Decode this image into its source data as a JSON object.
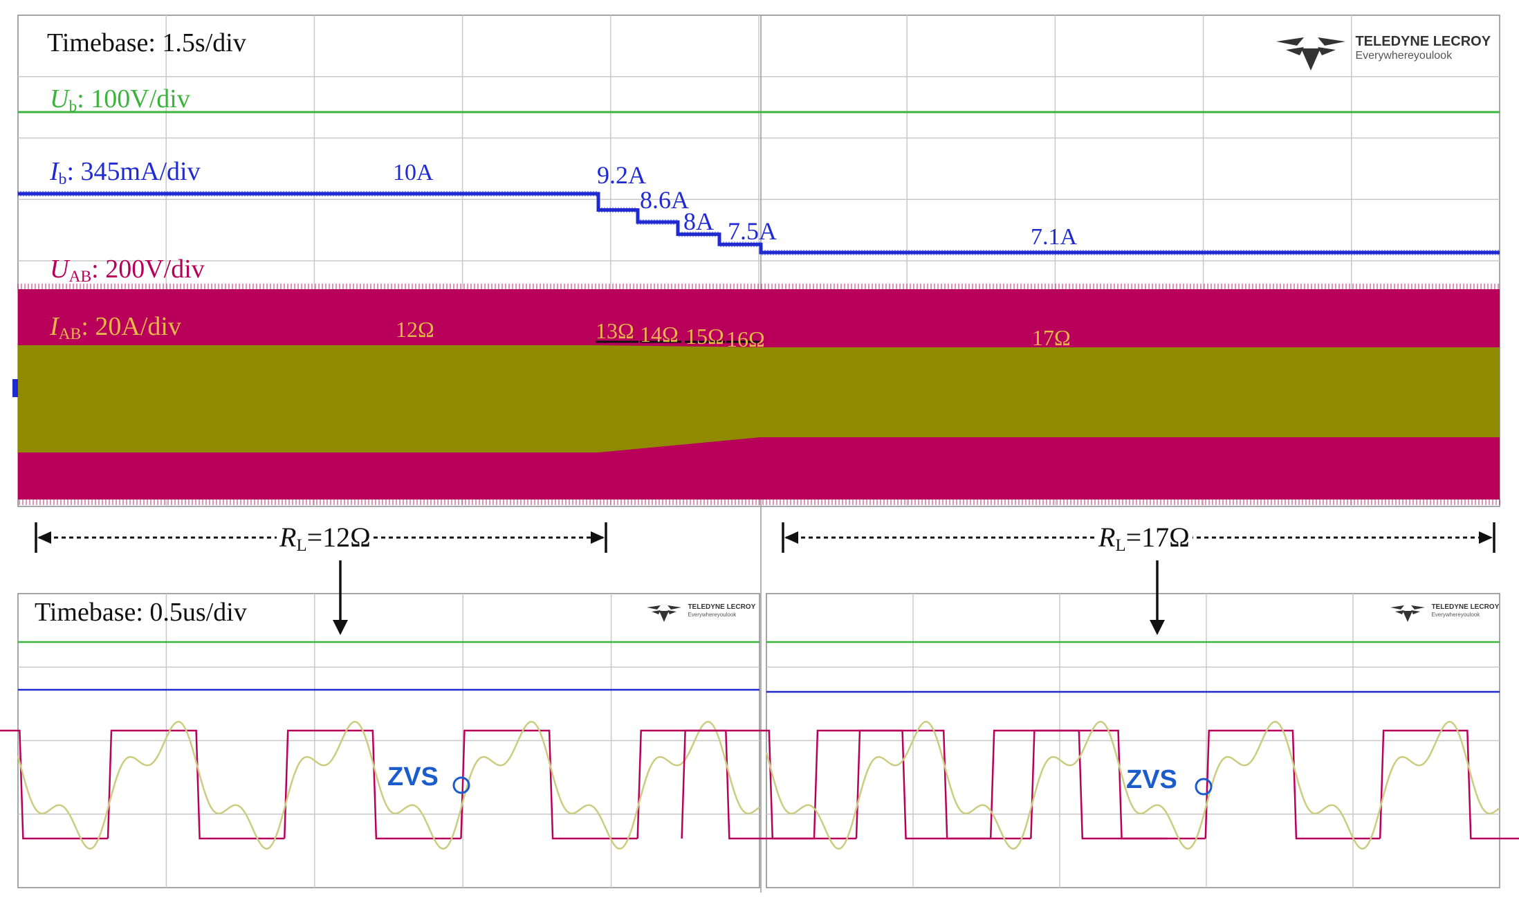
{
  "colors": {
    "ub": "#3cb33c",
    "ib": "#1f2ad0",
    "uab": "#b8005a",
    "iab": "#8f8a00",
    "iab_text": "#e6b84a",
    "zvs": "#1a5ccc",
    "grid": "#c8c8c8",
    "frame": "#222222"
  },
  "logo": {
    "brand": "TELEDYNE LECROY",
    "tagline": "Everywhereyoulook"
  },
  "top_panel": {
    "timebase": "Timebase: 1.5s/div",
    "channels": {
      "ub": {
        "sym": "U",
        "sub": "b",
        "scale": ": 100V/div"
      },
      "ib": {
        "sym": "I",
        "sub": "b",
        "scale": ": 345mA/div"
      },
      "uab": {
        "sym": "U",
        "sub": "AB",
        "scale": ": 200V/div"
      },
      "iab": {
        "sym": "I",
        "sub": "AB",
        "scale": ": 20A/div"
      }
    },
    "current_labels": [
      "10A",
      "9.2A",
      "8.6A",
      "8A",
      "7.5A",
      "7.1A"
    ],
    "load_labels": [
      "12Ω",
      "13Ω",
      "14Ω",
      "15Ω",
      "16Ω",
      "17Ω"
    ]
  },
  "markers": {
    "left": {
      "sym": "R",
      "sub": "L",
      "value": "=12Ω"
    },
    "right": {
      "sym": "R",
      "sub": "L",
      "value": "=17Ω"
    }
  },
  "bottom_panel": {
    "timebase": "Timebase: 0.5us/div",
    "zvs_left": "ZVS",
    "zvs_right": "ZVS"
  },
  "chart_data": [
    {
      "type": "line",
      "title": "",
      "xlabel": "",
      "ylabel": "",
      "timebase": "1.5s/div",
      "series": [
        {
          "name": "Ib",
          "unit": "A",
          "values": [
            10,
            9.2,
            8.6,
            8,
            7.5,
            7.1
          ],
          "load_ohm": [
            12,
            13,
            14,
            15,
            16,
            17
          ]
        },
        {
          "name": "Ub",
          "scale": "100V/div"
        },
        {
          "name": "UAB",
          "scale": "200V/div"
        },
        {
          "name": "IAB",
          "scale": "20A/div"
        }
      ]
    },
    {
      "type": "line",
      "title": "",
      "timebase": "0.5us/div",
      "panels": [
        "RL=12Ω",
        "RL=17Ω"
      ],
      "annotations": [
        "ZVS",
        "ZVS"
      ]
    }
  ]
}
